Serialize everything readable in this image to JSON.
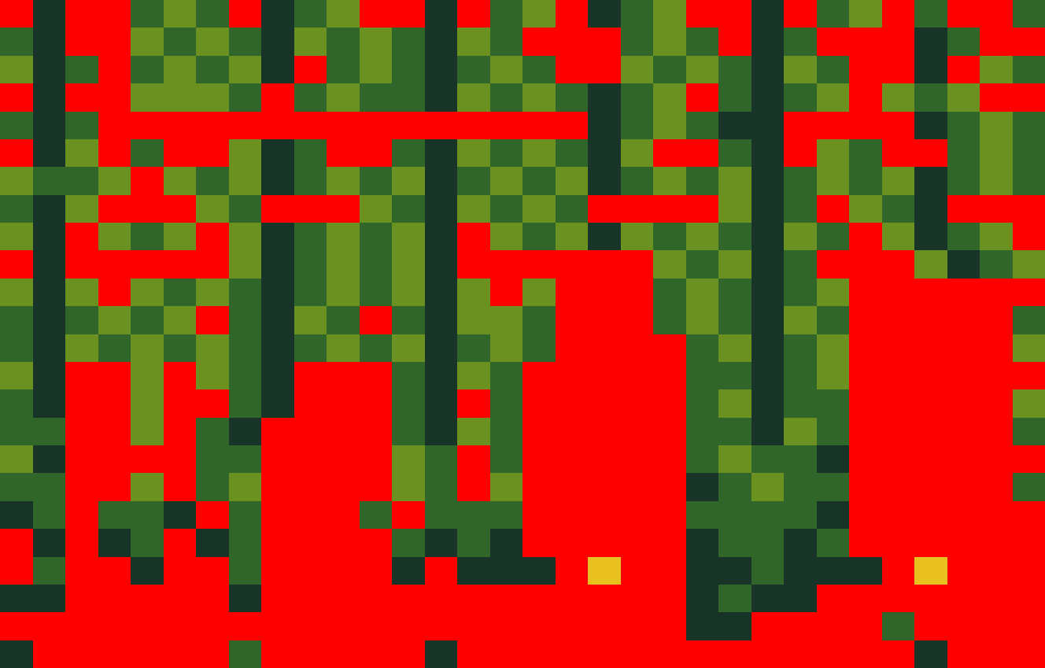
{
  "chart_data": {
    "type": "heatmap",
    "tick_labels": false,
    "zlim": [
      1,
      8
    ],
    "cells": [
      [
        9,
        2,
        9,
        9,
        4,
        6,
        4,
        9,
        2,
        4,
        6,
        9,
        9,
        2,
        9,
        4,
        6,
        9,
        2,
        4,
        6,
        9,
        9,
        2,
        9,
        4,
        6,
        9,
        4,
        9,
        9,
        4
      ],
      [
        4,
        2,
        9,
        9,
        6,
        4,
        6,
        4,
        2,
        6,
        4,
        6,
        4,
        2,
        6,
        4,
        9,
        9,
        9,
        4,
        6,
        4,
        9,
        2,
        4,
        9,
        9,
        9,
        2,
        4,
        9,
        9
      ],
      [
        6,
        2,
        4,
        9,
        4,
        6,
        4,
        6,
        2,
        9,
        4,
        6,
        4,
        2,
        4,
        6,
        4,
        9,
        9,
        6,
        4,
        6,
        4,
        2,
        6,
        4,
        9,
        9,
        2,
        9,
        6,
        4
      ],
      [
        9,
        2,
        9,
        9,
        6,
        6,
        6,
        4,
        9,
        4,
        6,
        4,
        4,
        2,
        6,
        4,
        6,
        4,
        2,
        4,
        6,
        9,
        4,
        2,
        4,
        6,
        9,
        6,
        4,
        6,
        9,
        9
      ],
      [
        4,
        2,
        4,
        9,
        9,
        9,
        9,
        9,
        9,
        9,
        9,
        9,
        9,
        9,
        9,
        9,
        9,
        9,
        2,
        4,
        6,
        4,
        2,
        2,
        9,
        9,
        9,
        9,
        2,
        4,
        6,
        4
      ],
      [
        9,
        2,
        6,
        9,
        4,
        9,
        9,
        6,
        2,
        4,
        9,
        9,
        4,
        2,
        6,
        4,
        6,
        4,
        2,
        6,
        9,
        9,
        4,
        2,
        9,
        6,
        4,
        9,
        9,
        4,
        6,
        4
      ],
      [
        6,
        4,
        4,
        6,
        9,
        6,
        4,
        6,
        2,
        4,
        6,
        4,
        6,
        2,
        4,
        6,
        4,
        6,
        2,
        4,
        6,
        4,
        6,
        2,
        4,
        6,
        4,
        6,
        2,
        4,
        6,
        4
      ],
      [
        4,
        2,
        6,
        9,
        9,
        9,
        6,
        4,
        9,
        9,
        9,
        6,
        4,
        2,
        6,
        4,
        6,
        4,
        9,
        9,
        9,
        9,
        6,
        2,
        4,
        9,
        6,
        4,
        2,
        9,
        9,
        9
      ],
      [
        6,
        2,
        9,
        6,
        4,
        6,
        9,
        6,
        2,
        4,
        6,
        4,
        6,
        2,
        9,
        6,
        4,
        6,
        2,
        6,
        4,
        6,
        4,
        2,
        6,
        4,
        9,
        6,
        2,
        4,
        6,
        9
      ],
      [
        9,
        2,
        9,
        9,
        9,
        9,
        9,
        6,
        2,
        4,
        6,
        4,
        6,
        2,
        9,
        9,
        9,
        9,
        9,
        9,
        6,
        4,
        6,
        2,
        4,
        9,
        9,
        9,
        6,
        2,
        4,
        6
      ],
      [
        6,
        2,
        6,
        9,
        6,
        4,
        6,
        4,
        2,
        4,
        6,
        4,
        6,
        2,
        6,
        9,
        6,
        0,
        0,
        0,
        4,
        6,
        4,
        2,
        4,
        6,
        0,
        0,
        0,
        0,
        0,
        9
      ],
      [
        4,
        2,
        4,
        6,
        4,
        6,
        9,
        4,
        2,
        6,
        4,
        9,
        4,
        2,
        6,
        6,
        4,
        0,
        0,
        0,
        4,
        6,
        4,
        2,
        6,
        4,
        0,
        0,
        0,
        0,
        0,
        4
      ],
      [
        4,
        2,
        6,
        4,
        6,
        4,
        6,
        4,
        2,
        4,
        6,
        4,
        6,
        2,
        4,
        6,
        4,
        0,
        0,
        0,
        0,
        4,
        6,
        2,
        4,
        6,
        0,
        0,
        0,
        0,
        0,
        6
      ],
      [
        6,
        2,
        0,
        9,
        6,
        0,
        6,
        4,
        2,
        0,
        0,
        0,
        4,
        2,
        6,
        4,
        0,
        0,
        0,
        0,
        0,
        4,
        4,
        2,
        4,
        6,
        0,
        0,
        0,
        0,
        0,
        0
      ],
      [
        4,
        2,
        0,
        0,
        6,
        9,
        0,
        4,
        2,
        0,
        0,
        0,
        4,
        2,
        9,
        4,
        0,
        0,
        0,
        0,
        0,
        4,
        6,
        2,
        4,
        4,
        0,
        0,
        0,
        0,
        0,
        6
      ],
      [
        4,
        4,
        0,
        0,
        6,
        0,
        4,
        2,
        0,
        0,
        0,
        0,
        4,
        2,
        6,
        4,
        0,
        0,
        0,
        0,
        0,
        4,
        4,
        2,
        6,
        4,
        0,
        0,
        0,
        0,
        0,
        4
      ],
      [
        6,
        2,
        0,
        0,
        9,
        0,
        4,
        4,
        0,
        0,
        0,
        0,
        6,
        4,
        9,
        4,
        0,
        0,
        0,
        0,
        0,
        4,
        6,
        4,
        4,
        2,
        0,
        0,
        0,
        0,
        0,
        0
      ],
      [
        4,
        4,
        0,
        9,
        6,
        0,
        4,
        6,
        0,
        0,
        0,
        0,
        6,
        4,
        9,
        6,
        0,
        0,
        0,
        0,
        0,
        2,
        4,
        6,
        4,
        4,
        0,
        0,
        0,
        0,
        0,
        4
      ],
      [
        2,
        4,
        0,
        4,
        4,
        2,
        0,
        4,
        0,
        0,
        0,
        4,
        0,
        4,
        4,
        4,
        0,
        0,
        0,
        0,
        0,
        4,
        4,
        4,
        4,
        2,
        0,
        0,
        0,
        0,
        0,
        0
      ],
      [
        0,
        2,
        0,
        2,
        4,
        0,
        2,
        4,
        0,
        0,
        0,
        0,
        4,
        2,
        4,
        2,
        0,
        0,
        0,
        0,
        0,
        2,
        4,
        4,
        2,
        4,
        0,
        0,
        0,
        0,
        0,
        0
      ],
      [
        0,
        4,
        0,
        0,
        2,
        0,
        0,
        4,
        0,
        0,
        0,
        0,
        2,
        0,
        2,
        2,
        2,
        0,
        8,
        0,
        0,
        2,
        2,
        4,
        2,
        2,
        2,
        0,
        8,
        0,
        0,
        0
      ],
      [
        2,
        2,
        0,
        0,
        0,
        0,
        0,
        2,
        0,
        0,
        0,
        0,
        0,
        0,
        0,
        0,
        0,
        0,
        0,
        0,
        0,
        2,
        4,
        2,
        2,
        0,
        0,
        0,
        0,
        0,
        0,
        0
      ],
      [
        0,
        0,
        0,
        0,
        0,
        0,
        0,
        0,
        0,
        0,
        0,
        0,
        0,
        0,
        0,
        0,
        0,
        0,
        0,
        0,
        0,
        2,
        2,
        0,
        0,
        0,
        0,
        4,
        0,
        0,
        0,
        0
      ],
      [
        2,
        0,
        0,
        0,
        0,
        0,
        0,
        4,
        0,
        0,
        0,
        0,
        0,
        2,
        0,
        0,
        0,
        0,
        0,
        0,
        0,
        0,
        0,
        0,
        0,
        0,
        0,
        0,
        2,
        0,
        0,
        0
      ]
    ]
  }
}
